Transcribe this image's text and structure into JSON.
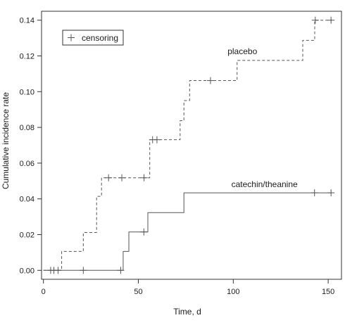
{
  "chart_data": {
    "type": "line",
    "subtype": "step",
    "title": "",
    "xlabel": "Time, d",
    "ylabel": "Cumulative incidence rate",
    "xlim": [
      -1,
      157
    ],
    "ylim": [
      -0.005,
      0.145
    ],
    "xticks": [
      0,
      50,
      100,
      150
    ],
    "yticks": [
      0.0,
      0.02,
      0.04,
      0.06,
      0.08,
      0.1,
      0.12,
      0.14
    ],
    "ytick_labels": [
      "0.00",
      "0.02",
      "0.04",
      "0.06",
      "0.08",
      "0.10",
      "0.12",
      "0.14"
    ],
    "grid": false,
    "legend": {
      "position": "top-left",
      "entries": [
        {
          "marker": "+",
          "label": "censoring"
        }
      ]
    },
    "series": [
      {
        "name": "placebo",
        "line_style": "dashed",
        "color": "#555555",
        "label_at": {
          "x": 97,
          "y": 0.121
        },
        "steps": [
          [
            0,
            0.0
          ],
          [
            9.6,
            0.0106
          ],
          [
            21,
            0.0212
          ],
          [
            28,
            0.0414
          ],
          [
            30.6,
            0.0518
          ],
          [
            56,
            0.0731
          ],
          [
            72,
            0.0838
          ],
          [
            74,
            0.095
          ],
          [
            77,
            0.1062
          ],
          [
            102,
            0.1175
          ],
          [
            136.6,
            0.1287
          ],
          [
            142.9,
            0.14
          ],
          [
            152,
            0.14
          ]
        ],
        "censor_times": [
          3.8,
          5.5,
          7.7,
          34.3,
          41.3,
          53.0,
          57.5,
          59.8,
          88.0,
          143.2,
          151.5
        ],
        "censor_values": [
          0.0,
          0.0,
          0.0,
          0.0518,
          0.0518,
          0.0518,
          0.0731,
          0.0731,
          0.1062,
          0.14,
          0.14
        ]
      },
      {
        "name": "catechin/theanine",
        "line_style": "solid",
        "color": "#555555",
        "label_at": {
          "x": 99,
          "y": 0.0465
        },
        "steps": [
          [
            0,
            0.0
          ],
          [
            42,
            0.0106
          ],
          [
            45,
            0.0215
          ],
          [
            55,
            0.0323
          ],
          [
            74,
            0.0434
          ],
          [
            152,
            0.0434
          ]
        ],
        "censor_times": [
          21.0,
          40.7,
          52.9,
          142.8,
          151.5
        ],
        "censor_values": [
          0.0,
          0.0,
          0.0215,
          0.0434,
          0.0434
        ]
      }
    ]
  }
}
